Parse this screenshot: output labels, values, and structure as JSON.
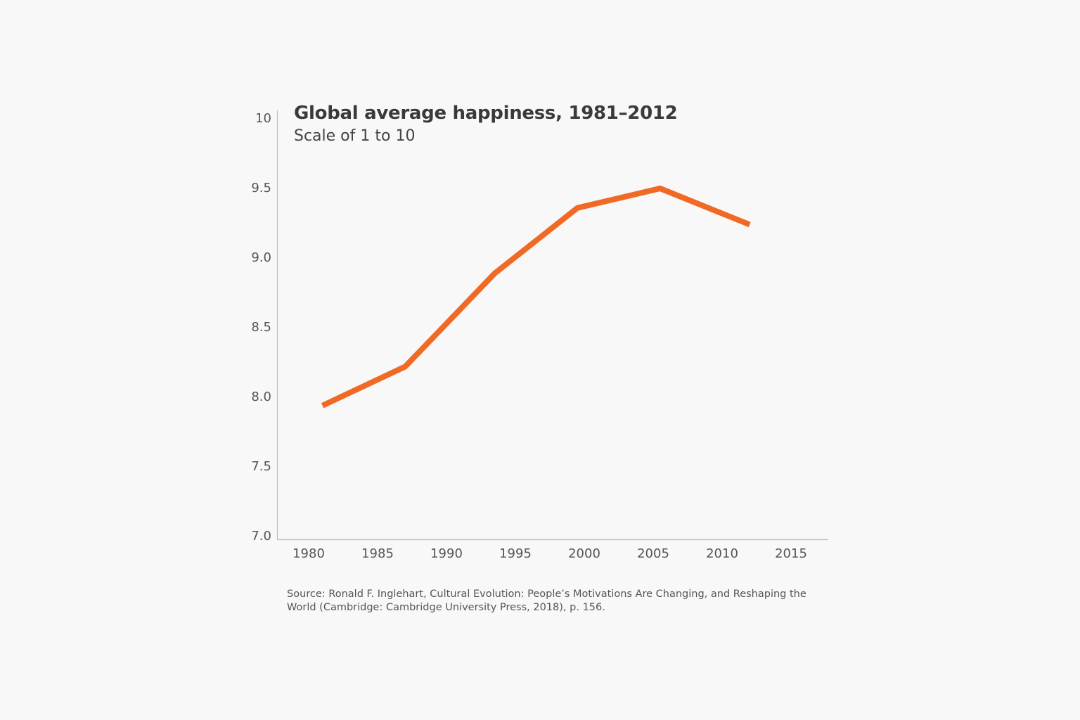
{
  "chart_data": {
    "type": "line",
    "title": "Global average happiness, 1981–2012",
    "subtitle": "Scale of 1 to 10",
    "xlabel": "",
    "ylabel": "",
    "xlim": [
      1978,
      2018
    ],
    "ylim": [
      7.0,
      10
    ],
    "x_ticks": [
      "1980",
      "1985",
      "1990",
      "1995",
      "2000",
      "2005",
      "2010",
      "2015"
    ],
    "y_ticks": [
      "7.0",
      "7.5",
      "8.0",
      "8.5",
      "9.0",
      "9.5",
      "10"
    ],
    "grid": false,
    "x": [
      1981,
      1987,
      1993.5,
      1999.5,
      2005.5,
      2012
    ],
    "values": [
      7.93,
      8.21,
      8.88,
      9.35,
      9.49,
      9.23
    ],
    "line_color": "#f06a25",
    "source": "Source: Ronald F. Inglehart, Cultural Evolution: People’s Motivations Are Changing, and Reshaping the World (Cambridge: Cambridge University Press, 2018), p. 156."
  }
}
